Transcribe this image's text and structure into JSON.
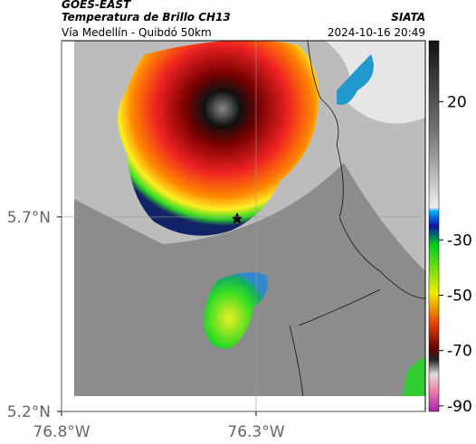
{
  "header": {
    "satellite": "GOES-EAST",
    "product": "Temperatura de Brillo CH13",
    "route": "Vía Medellín - Quibdó 50km",
    "source": "SIATA",
    "datetime": "2024-10-16 20:49"
  },
  "map": {
    "xlim": [
      -76.8,
      -75.865
    ],
    "ylim": [
      5.2,
      6.153
    ],
    "xticks": [
      {
        "value": -76.8,
        "label": "76.8°W"
      },
      {
        "value": -76.3,
        "label": "76.3°W"
      }
    ],
    "yticks": [
      {
        "value": 5.7,
        "label": "5.7°N"
      },
      {
        "value": 5.2,
        "label": "5.2°N"
      }
    ]
  },
  "colorbar": {
    "lim": [
      -92,
      42
    ],
    "ticks": [
      20,
      -30,
      -50,
      -70,
      -90
    ]
  }
}
